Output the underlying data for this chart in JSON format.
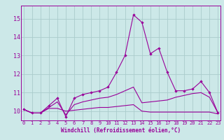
{
  "xlabel": "Windchill (Refroidissement éolien,°C)",
  "bg_color": "#cce8e8",
  "grid_color": "#aacccc",
  "line_color": "#990099",
  "xlim": [
    -0.3,
    23.3
  ],
  "ylim": [
    9.5,
    15.7
  ],
  "yticks": [
    10,
    11,
    12,
    13,
    14,
    15
  ],
  "xticks": [
    0,
    1,
    2,
    3,
    4,
    5,
    6,
    7,
    8,
    9,
    10,
    11,
    12,
    13,
    14,
    15,
    16,
    17,
    18,
    19,
    20,
    21,
    22,
    23
  ],
  "series1_x": [
    0,
    1,
    2,
    3,
    4,
    5,
    6,
    7,
    8,
    9,
    10,
    11,
    12,
    13,
    14,
    15,
    16,
    17,
    18,
    19,
    20,
    21,
    22,
    23
  ],
  "series1_y": [
    10.1,
    9.9,
    9.9,
    10.3,
    10.7,
    9.7,
    10.7,
    10.9,
    11.0,
    11.1,
    11.3,
    12.1,
    13.0,
    15.2,
    14.8,
    13.1,
    13.4,
    12.1,
    11.1,
    11.1,
    11.2,
    11.6,
    11.0,
    9.9
  ],
  "series2_x": [
    0,
    1,
    2,
    3,
    4,
    5,
    6,
    7,
    8,
    9,
    10,
    11,
    12,
    13,
    14,
    15,
    16,
    17,
    18,
    19,
    20,
    21,
    22,
    23
  ],
  "series2_y": [
    10.1,
    9.9,
    9.9,
    10.15,
    10.15,
    10.0,
    10.05,
    10.1,
    10.15,
    10.2,
    10.2,
    10.25,
    10.3,
    10.35,
    10.0,
    9.95,
    9.95,
    9.95,
    9.95,
    9.95,
    9.95,
    9.95,
    9.95,
    9.85
  ],
  "series3_x": [
    0,
    1,
    2,
    3,
    4,
    5,
    6,
    7,
    8,
    9,
    10,
    11,
    12,
    13,
    14,
    15,
    16,
    17,
    18,
    19,
    20,
    21,
    22,
    23
  ],
  "series3_y": [
    10.1,
    9.9,
    9.9,
    10.2,
    10.5,
    9.8,
    10.35,
    10.5,
    10.6,
    10.7,
    10.75,
    10.9,
    11.1,
    11.3,
    10.45,
    10.5,
    10.55,
    10.6,
    10.75,
    10.85,
    10.95,
    11.0,
    10.75,
    9.9
  ]
}
